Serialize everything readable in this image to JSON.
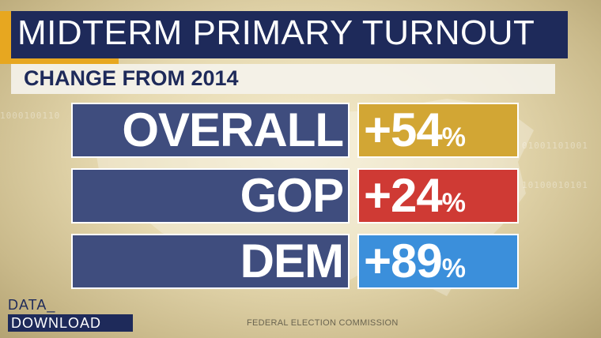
{
  "header": {
    "title": "MIDTERM PRIMARY TURNOUT",
    "subtitle": "CHANGE FROM 2014"
  },
  "rows": [
    {
      "label": "OVERALL",
      "value": "+54",
      "unit": "%",
      "color": "#d2a634"
    },
    {
      "label": "GOP",
      "value": "+24",
      "unit": "%",
      "color": "#cf3a34"
    },
    {
      "label": "DEM",
      "value": "+89",
      "unit": "%",
      "color": "#3b8fdb"
    }
  ],
  "branding": {
    "logo_line1": "DATA_",
    "logo_line2": "DOWNLOAD"
  },
  "source": "FEDERAL ELECTION COMMISSION",
  "colors": {
    "navy": "#1e2a5a",
    "accent": "#e7a720",
    "label_box": "#3f4d7e"
  }
}
